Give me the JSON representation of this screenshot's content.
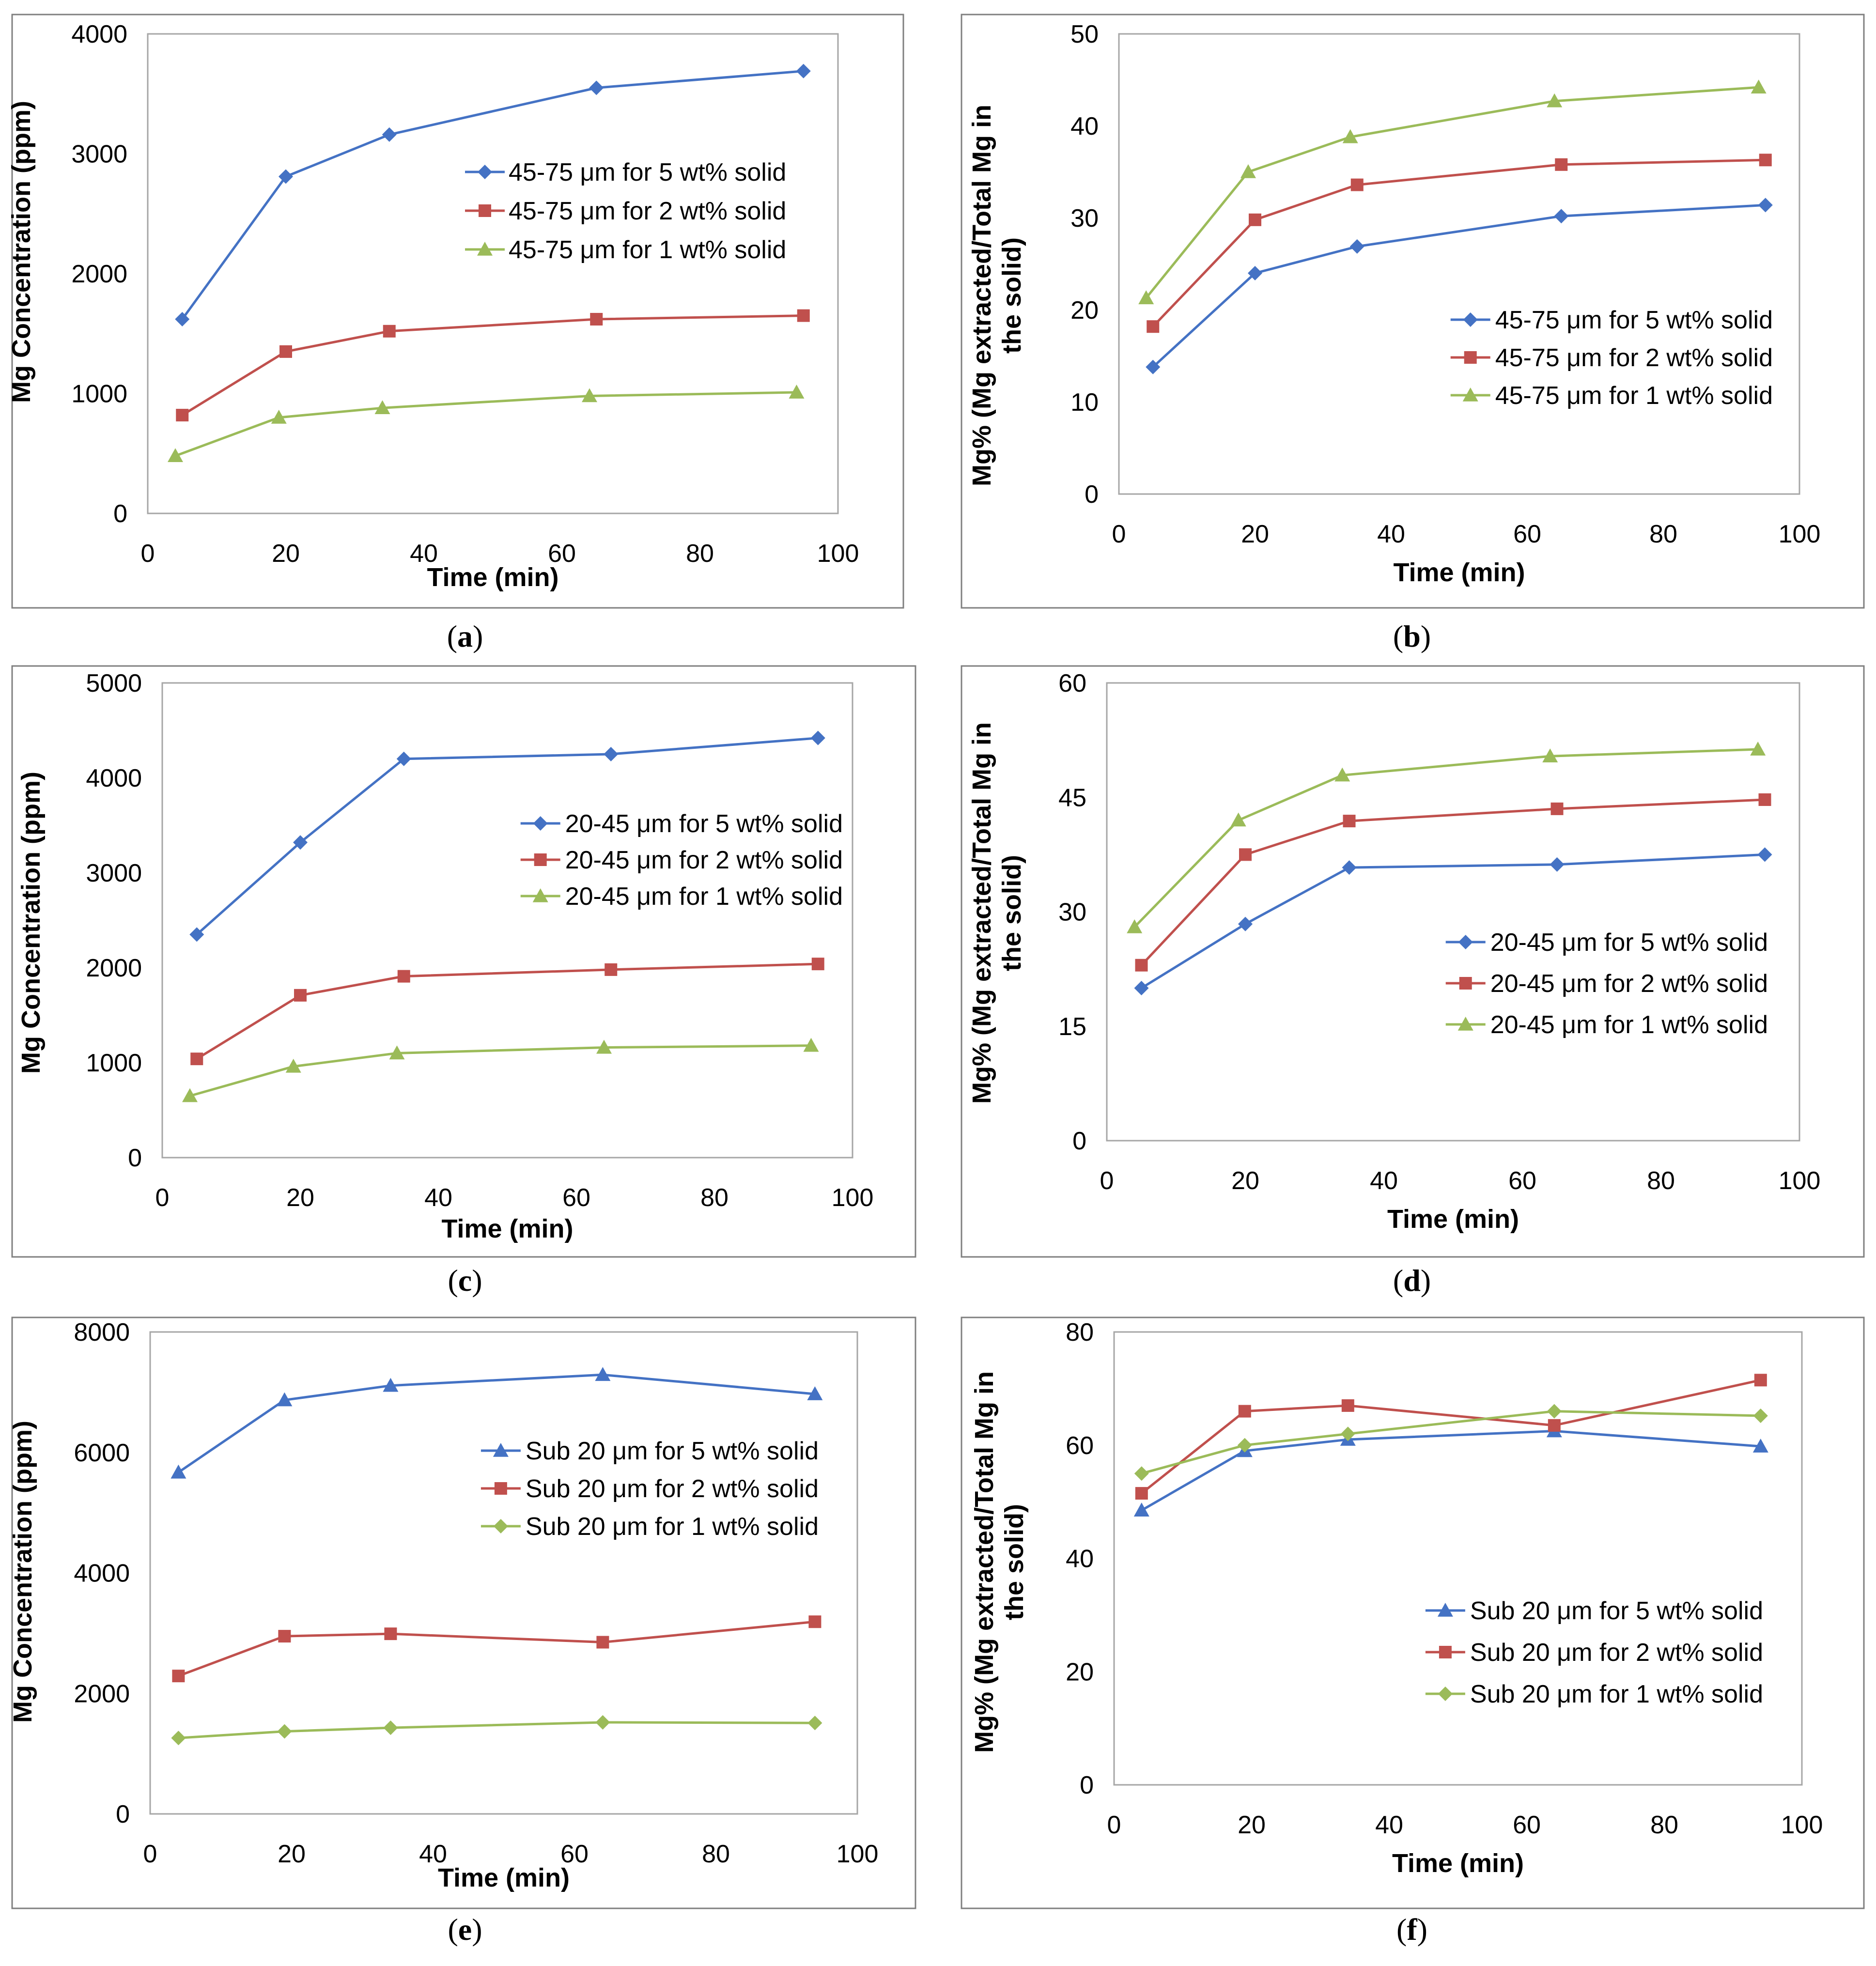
{
  "chart_data": [
    {
      "panel": "a",
      "type": "line",
      "xlabel": "Time (min)",
      "ylabel": "Mg Concentration (ppm)",
      "xlim": [
        0,
        100
      ],
      "ylim": [
        0,
        4000
      ],
      "xticks": [
        "0",
        "20",
        "40",
        "60",
        "80",
        "100"
      ],
      "yticks": [
        "0",
        "1000",
        "2000",
        "3000",
        "4000"
      ],
      "legend": "top-right",
      "series": [
        {
          "name": "45-75 μm for 5 wt% solid",
          "color": "#4472C4",
          "marker": "diamond",
          "x": [
            5,
            20,
            35,
            65,
            95
          ],
          "values": [
            1620,
            2810,
            3160,
            3550,
            3690
          ]
        },
        {
          "name": "45-75 μm for 2 wt% solid",
          "color": "#C0504D",
          "marker": "square",
          "x": [
            5,
            20,
            35,
            65,
            95
          ],
          "values": [
            820,
            1350,
            1520,
            1620,
            1650
          ]
        },
        {
          "name": "45-75 μm for 1 wt% solid",
          "color": "#9BBB59",
          "marker": "triangle",
          "x": [
            4,
            19,
            34,
            64,
            94
          ],
          "values": [
            480,
            800,
            880,
            980,
            1010
          ]
        }
      ]
    },
    {
      "panel": "b",
      "type": "line",
      "xlabel": "Time (min)",
      "ylabel": "Mg% (Mg extracted/Total Mg in the solid)",
      "xlim": [
        0,
        100
      ],
      "ylim": [
        0,
        50
      ],
      "xticks": [
        "0",
        "20",
        "40",
        "60",
        "80",
        "100"
      ],
      "yticks": [
        "0",
        "10",
        "20",
        "30",
        "40",
        "50"
      ],
      "legend": "bottom-right",
      "series": [
        {
          "name": "45-75 μm for 5 wt% solid",
          "color": "#4472C4",
          "marker": "diamond",
          "x": [
            5,
            20,
            35,
            65,
            95
          ],
          "values": [
            13.8,
            24,
            26.9,
            30.2,
            31.4
          ]
        },
        {
          "name": "45-75 μm for 2 wt% solid",
          "color": "#C0504D",
          "marker": "square",
          "x": [
            5,
            20,
            35,
            65,
            95
          ],
          "values": [
            18.2,
            29.8,
            33.6,
            35.8,
            36.3
          ]
        },
        {
          "name": "45-75 μm for 1 wt% solid",
          "color": "#9BBB59",
          "marker": "triangle",
          "x": [
            4,
            19,
            34,
            64,
            94
          ],
          "values": [
            21.3,
            35,
            38.8,
            42.7,
            44.2
          ]
        }
      ]
    },
    {
      "panel": "c",
      "type": "line",
      "xlabel": "Time (min)",
      "ylabel": "Mg Concentration (ppm)",
      "xlim": [
        0,
        100
      ],
      "ylim": [
        0,
        5000
      ],
      "xticks": [
        "0",
        "20",
        "40",
        "60",
        "80",
        "100"
      ],
      "yticks": [
        "0",
        "1000",
        "2000",
        "3000",
        "4000",
        "5000"
      ],
      "legend": "top-right",
      "series": [
        {
          "name": "20-45 μm for 5 wt% solid",
          "color": "#4472C4",
          "marker": "diamond",
          "x": [
            5,
            20,
            35,
            65,
            95
          ],
          "values": [
            2350,
            3320,
            4200,
            4250,
            4420
          ]
        },
        {
          "name": "20-45 μm for 2 wt% solid",
          "color": "#C0504D",
          "marker": "square",
          "x": [
            5,
            20,
            35,
            65,
            95
          ],
          "values": [
            1040,
            1710,
            1910,
            1980,
            2040
          ]
        },
        {
          "name": "20-45 μm for 1 wt% solid",
          "color": "#9BBB59",
          "marker": "triangle",
          "x": [
            4,
            19,
            34,
            64,
            94
          ],
          "values": [
            650,
            960,
            1100,
            1160,
            1180
          ]
        }
      ]
    },
    {
      "panel": "d",
      "type": "line",
      "xlabel": "Time (min)",
      "ylabel": "Mg% (Mg extracted/Total Mg in the solid)",
      "xlim": [
        0,
        100
      ],
      "ylim": [
        0,
        60
      ],
      "xticks": [
        "0",
        "20",
        "40",
        "60",
        "80",
        "100"
      ],
      "yticks": [
        "0",
        "15",
        "30",
        "45",
        "60"
      ],
      "legend": "bottom-right",
      "series": [
        {
          "name": "20-45 μm for 5 wt% solid",
          "color": "#4472C4",
          "marker": "diamond",
          "x": [
            5,
            20,
            35,
            65,
            95
          ],
          "values": [
            20,
            28.4,
            35.8,
            36.2,
            37.5
          ]
        },
        {
          "name": "20-45 μm for 2 wt% solid",
          "color": "#C0504D",
          "marker": "square",
          "x": [
            5,
            20,
            35,
            65,
            95
          ],
          "values": [
            23,
            37.5,
            41.9,
            43.5,
            44.7
          ]
        },
        {
          "name": "20-45 μm for 1 wt% solid",
          "color": "#9BBB59",
          "marker": "triangle",
          "x": [
            4,
            19,
            34,
            64,
            94
          ],
          "values": [
            28,
            42,
            47.9,
            50.4,
            51.3
          ]
        }
      ]
    },
    {
      "panel": "e",
      "type": "line",
      "xlabel": "Time (min)",
      "ylabel": "Mg Concentration (ppm)",
      "xlim": [
        0,
        100
      ],
      "ylim": [
        0,
        8000
      ],
      "xticks": [
        "0",
        "20",
        "40",
        "60",
        "80",
        "100"
      ],
      "yticks": [
        "0",
        "2000",
        "4000",
        "6000",
        "8000"
      ],
      "legend": "top-right",
      "series": [
        {
          "name": "Sub 20 μm for 5 wt% solid",
          "color": "#4472C4",
          "marker": "triangle",
          "x": [
            4,
            19,
            34,
            64,
            94
          ],
          "values": [
            5670,
            6870,
            7110,
            7290,
            6970
          ]
        },
        {
          "name": "Sub 20 μm for 2 wt% solid",
          "color": "#C0504D",
          "marker": "square",
          "x": [
            4,
            19,
            34,
            64,
            94
          ],
          "values": [
            2290,
            2950,
            2990,
            2850,
            3190
          ]
        },
        {
          "name": "Sub 20 μm for 1 wt% solid",
          "color": "#9BBB59",
          "marker": "diamond",
          "x": [
            4,
            19,
            34,
            64,
            94
          ],
          "values": [
            1260,
            1370,
            1430,
            1520,
            1510
          ]
        }
      ]
    },
    {
      "panel": "f",
      "type": "line",
      "xlabel": "Time (min)",
      "ylabel": "Mg% (Mg extracted/Total Mg in the solid)",
      "xlim": [
        0,
        100
      ],
      "ylim": [
        0,
        80
      ],
      "xticks": [
        "0",
        "20",
        "40",
        "60",
        "80",
        "100"
      ],
      "yticks": [
        "0",
        "20",
        "40",
        "60",
        "80"
      ],
      "legend": "bottom-right",
      "series": [
        {
          "name": "Sub 20 μm for 5 wt% solid",
          "color": "#4472C4",
          "marker": "triangle",
          "x": [
            4,
            19,
            34,
            64,
            94
          ],
          "values": [
            48.5,
            59,
            61,
            62.5,
            59.8
          ]
        },
        {
          "name": "Sub 20 μm for 2 wt% solid",
          "color": "#C0504D",
          "marker": "square",
          "x": [
            4,
            19,
            34,
            64,
            94
          ],
          "values": [
            51.5,
            66,
            67,
            63.5,
            71.5
          ]
        },
        {
          "name": "Sub 20 μm for 1 wt% solid",
          "color": "#9BBB59",
          "marker": "diamond",
          "x": [
            4,
            19,
            34,
            64,
            94
          ],
          "values": [
            55,
            60,
            62,
            66,
            65.2
          ]
        }
      ]
    }
  ]
}
